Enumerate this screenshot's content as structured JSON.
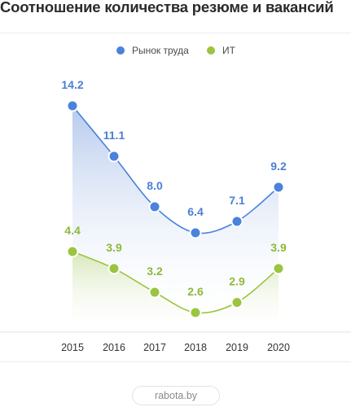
{
  "title": "Соотношение количества резюме и вакансий",
  "source": "rabota.by",
  "colors": {
    "market": "#4a82dc",
    "it": "#9bc440",
    "market_label": "#4a7fd4",
    "it_label": "#8fb83a"
  },
  "chart_data": {
    "type": "line",
    "title": "Соотношение количества резюме и вакансий",
    "xlabel": "",
    "ylabel": "",
    "legend_position": "top-center",
    "grid": false,
    "categories": [
      "2015",
      "2016",
      "2017",
      "2018",
      "2019",
      "2020"
    ],
    "series": [
      {
        "name": "Рынок труда",
        "values": [
          14.2,
          11.1,
          8.0,
          6.4,
          7.1,
          9.2
        ],
        "labels": [
          "14.2",
          "11.1",
          "8.0",
          "6.4",
          "7.1",
          "9.2"
        ]
      },
      {
        "name": "ИТ",
        "values": [
          4.4,
          3.9,
          3.2,
          2.6,
          2.9,
          3.9
        ],
        "labels": [
          "4.4",
          "3.9",
          "3.2",
          "2.6",
          "2.9",
          "3.9"
        ]
      }
    ]
  }
}
